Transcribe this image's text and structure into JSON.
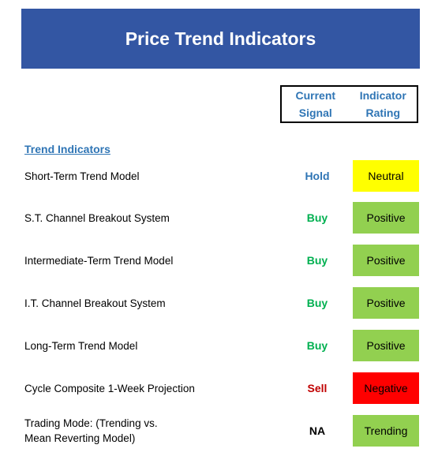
{
  "title": "Price Trend Indicators",
  "columns": {
    "signal": [
      "Current",
      "Signal"
    ],
    "rating": [
      "Indicator",
      "Rating"
    ]
  },
  "section": "Trend Indicators",
  "colors": {
    "banner": "#3356a3",
    "header_text": "#2f75b5",
    "hold": "#2f75b5",
    "buy": "#00b050",
    "sell": "#c00000",
    "na": "#000000",
    "neutral": "#ffff00",
    "positive": "#92d050",
    "negative": "#ff0000"
  },
  "rows": [
    {
      "label": [
        "Short-Term Trend Model"
      ],
      "signal": "Hold",
      "signal_color": "#2f75b5",
      "rating": "Neutral",
      "rating_color": "#ffff00"
    },
    {
      "label": [
        "S.T. Channel Breakout System"
      ],
      "signal": "Buy",
      "signal_color": "#00b050",
      "rating": "Positive",
      "rating_color": "#92d050"
    },
    {
      "label": [
        "Intermediate-Term Trend Model"
      ],
      "signal": "Buy",
      "signal_color": "#00b050",
      "rating": "Positive",
      "rating_color": "#92d050"
    },
    {
      "label": [
        "I.T. Channel Breakout System"
      ],
      "signal": "Buy",
      "signal_color": "#00b050",
      "rating": "Positive",
      "rating_color": "#92d050"
    },
    {
      "label": [
        "Long-Term Trend Model"
      ],
      "signal": "Buy",
      "signal_color": "#00b050",
      "rating": "Positive",
      "rating_color": "#92d050"
    },
    {
      "label": [
        "Cycle Composite 1-Week Projection"
      ],
      "signal": "Sell",
      "signal_color": "#c00000",
      "rating": "Negative",
      "rating_color": "#ff0000"
    },
    {
      "label": [
        "Trading Mode: (Trending vs.",
        "Mean Reverting Model)"
      ],
      "signal": "NA",
      "signal_color": "#000000",
      "rating": "Trending",
      "rating_color": "#92d050"
    }
  ]
}
